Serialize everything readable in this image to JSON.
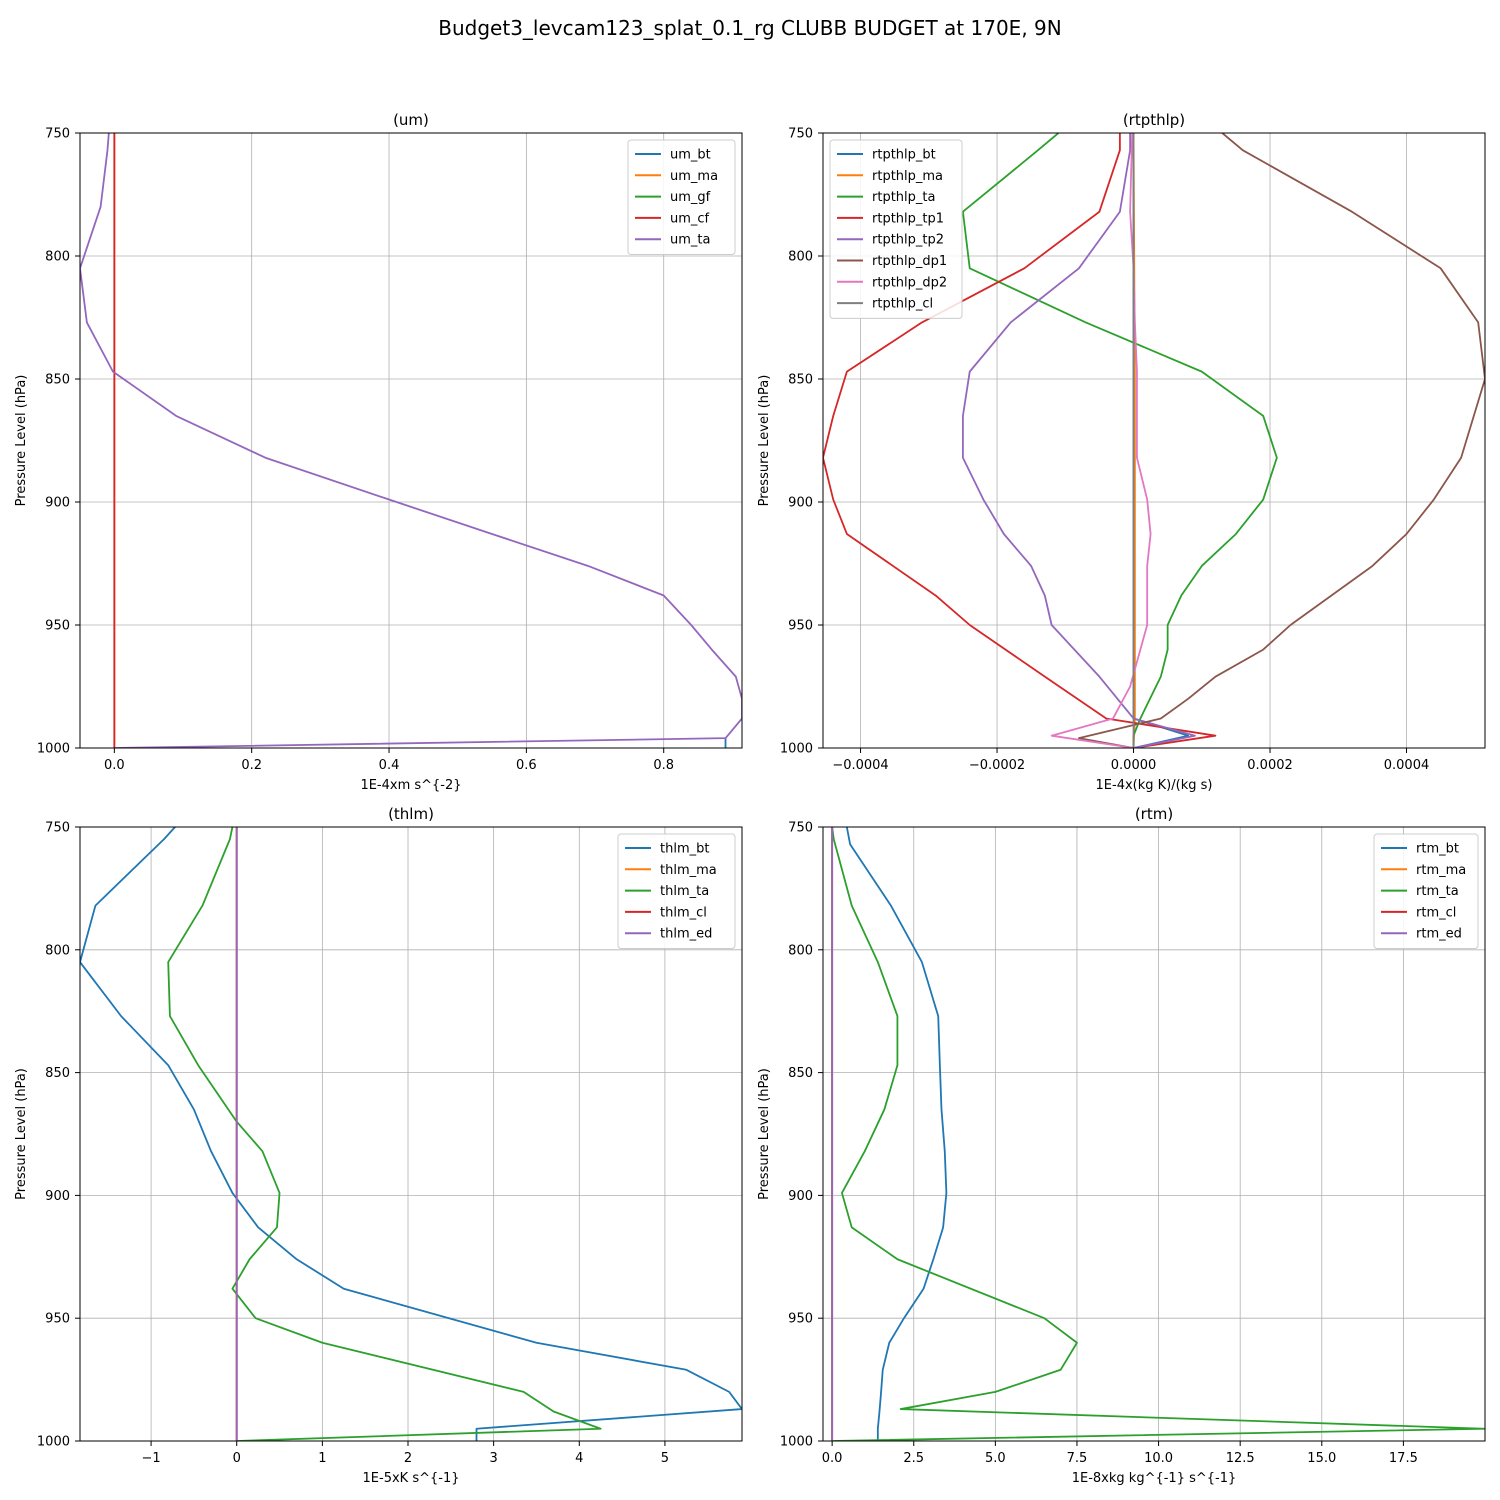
{
  "figure": {
    "title": "Budget3_levcam123_splat_0.1_rg CLUBB BUDGET at 170E, 9N"
  },
  "chart_data": [
    {
      "type": "line",
      "title": "(um)",
      "xlabel": "1E-4xm s^{-2}",
      "ylabel": "Pressure Level (hPa)",
      "xlim": [
        -0.05,
        0.914
      ],
      "ylim": [
        1000,
        750
      ],
      "y_inverted": true,
      "grid": true,
      "legend": "top-right",
      "xticks": [
        0.0,
        0.2,
        0.4,
        0.6,
        0.8
      ],
      "xtick_labels": [
        "0.0",
        "0.2",
        "0.4",
        "0.6",
        "0.8"
      ],
      "yticks": [
        750,
        800,
        850,
        900,
        950,
        1000
      ],
      "ytick_labels": [
        "750",
        "800",
        "850",
        "900",
        "950",
        "1000"
      ],
      "series": [
        {
          "name": "um_bt",
          "color": "#1f77b4",
          "points": [
            [
              0.89,
              1000
            ],
            [
              0.89,
              996
            ]
          ]
        },
        {
          "name": "um_ma",
          "color": "#ff7f0e",
          "points": [
            [
              0,
              1000
            ],
            [
              0,
              750
            ]
          ]
        },
        {
          "name": "um_gf",
          "color": "#2ca02c",
          "points": []
        },
        {
          "name": "um_cf",
          "color": "#d62728",
          "points": [
            [
              0,
              1000
            ],
            [
              0,
              750
            ]
          ]
        },
        {
          "name": "um_ta",
          "color": "#9467bd",
          "points": [
            [
              0,
              1000
            ],
            [
              0.89,
              996
            ],
            [
              0.914,
              988
            ],
            [
              0.914,
              980
            ],
            [
              0.905,
              971
            ],
            [
              0.87,
              960
            ],
            [
              0.84,
              950
            ],
            [
              0.8,
              938
            ],
            [
              0.69,
              926
            ],
            [
              0.55,
              913
            ],
            [
              0.4,
              899
            ],
            [
              0.22,
              882
            ],
            [
              0.09,
              865
            ],
            [
              -0.002,
              847
            ],
            [
              -0.04,
              827
            ],
            [
              -0.05,
              805
            ],
            [
              -0.02,
              780
            ],
            [
              -0.01,
              757
            ],
            [
              -0.008,
              750
            ]
          ]
        }
      ]
    },
    {
      "type": "line",
      "title": "(rtpthlp)",
      "xlabel": "1E-4x(kg K)/(kg s)",
      "ylabel": "Pressure Level (hPa)",
      "xlim": [
        -0.000455,
        0.000515
      ],
      "ylim": [
        1000,
        750
      ],
      "y_inverted": true,
      "grid": true,
      "legend": "top-left",
      "xticks": [
        -0.0004,
        -0.0002,
        0.0,
        0.0002,
        0.0004
      ],
      "xtick_labels": [
        "−0.0004",
        "−0.0002",
        "0.0000",
        "0.0002",
        "0.0004"
      ],
      "yticks": [
        750,
        800,
        850,
        900,
        950,
        1000
      ],
      "ytick_labels": [
        "750",
        "800",
        "850",
        "900",
        "950",
        "1000"
      ],
      "series": [
        {
          "name": "rtpthlp_bt",
          "color": "#1f77b4",
          "points": [
            [
              0,
              1000
            ],
            [
              8e-05,
              995
            ],
            [
              0,
              988
            ],
            [
              0,
              750
            ]
          ]
        },
        {
          "name": "rtpthlp_ma",
          "color": "#ff7f0e",
          "points": [
            [
              0,
              1000
            ],
            [
              2e-06,
              988
            ],
            [
              2e-06,
              950
            ],
            [
              2e-06,
              900
            ],
            [
              2e-06,
              850
            ],
            [
              1e-06,
              800
            ],
            [
              0,
              750
            ]
          ]
        },
        {
          "name": "rtpthlp_ta",
          "color": "#2ca02c",
          "points": [
            [
              0,
              1000
            ],
            [
              0,
              995
            ],
            [
              1e-05,
              988
            ],
            [
              4e-05,
              971
            ],
            [
              5e-05,
              960
            ],
            [
              5e-05,
              950
            ],
            [
              7e-05,
              938
            ],
            [
              0.0001,
              926
            ],
            [
              0.00015,
              913
            ],
            [
              0.00019,
              899
            ],
            [
              0.00021,
              882
            ],
            [
              0.00019,
              865
            ],
            [
              0.0001,
              847
            ],
            [
              -7e-05,
              827
            ],
            [
              -0.00024,
              805
            ],
            [
              -0.00025,
              782
            ],
            [
              -0.00014,
              757
            ],
            [
              -0.00011,
              750
            ]
          ]
        },
        {
          "name": "rtpthlp_tp1",
          "color": "#d62728",
          "points": [
            [
              0,
              1000
            ],
            [
              0.00012,
              995
            ],
            [
              -4e-05,
              988
            ],
            [
              -0.00013,
              971
            ],
            [
              -0.00024,
              950
            ],
            [
              -0.00029,
              938
            ],
            [
              -0.00042,
              913
            ],
            [
              -0.00044,
              899
            ],
            [
              -0.000455,
              882
            ],
            [
              -0.00044,
              865
            ],
            [
              -0.00042,
              847
            ],
            [
              -0.00031,
              827
            ],
            [
              -0.00016,
              805
            ],
            [
              -5e-05,
              782
            ],
            [
              -2e-05,
              757
            ],
            [
              -2e-05,
              750
            ]
          ]
        },
        {
          "name": "rtpthlp_tp2",
          "color": "#9467bd",
          "points": [
            [
              0,
              1000
            ],
            [
              9e-05,
              995
            ],
            [
              0,
              988
            ],
            [
              -5e-05,
              971
            ],
            [
              -0.00012,
              950
            ],
            [
              -0.00013,
              938
            ],
            [
              -0.00015,
              926
            ],
            [
              -0.00019,
              913
            ],
            [
              -0.00022,
              899
            ],
            [
              -0.00025,
              882
            ],
            [
              -0.00025,
              865
            ],
            [
              -0.00024,
              847
            ],
            [
              -0.00018,
              827
            ],
            [
              -8e-05,
              805
            ],
            [
              -2e-05,
              782
            ],
            [
              -5e-06,
              757
            ],
            [
              -5e-06,
              750
            ]
          ]
        },
        {
          "name": "rtpthlp_dp1",
          "color": "#8c564b",
          "points": [
            [
              0,
              1000
            ],
            [
              -8e-05,
              996
            ],
            [
              4e-05,
              988
            ],
            [
              8e-05,
              980
            ],
            [
              0.00012,
              971
            ],
            [
              0.00019,
              960
            ],
            [
              0.00023,
              950
            ],
            [
              0.00029,
              938
            ],
            [
              0.00035,
              926
            ],
            [
              0.0004,
              913
            ],
            [
              0.00044,
              899
            ],
            [
              0.00048,
              882
            ],
            [
              0.000515,
              850
            ],
            [
              0.000505,
              827
            ],
            [
              0.00045,
              805
            ],
            [
              0.00032,
              782
            ],
            [
              0.00016,
              757
            ],
            [
              0.00013,
              750
            ]
          ]
        },
        {
          "name": "rtpthlp_dp2",
          "color": "#e377c2",
          "points": [
            [
              0,
              1000
            ],
            [
              -0.00012,
              995
            ],
            [
              -3e-05,
              988
            ],
            [
              -5e-06,
              975
            ],
            [
              1e-05,
              960
            ],
            [
              2e-05,
              950
            ],
            [
              2e-05,
              938
            ],
            [
              2e-05,
              926
            ],
            [
              2.5e-05,
              913
            ],
            [
              2e-05,
              899
            ],
            [
              5e-06,
              882
            ],
            [
              5e-06,
              847
            ],
            [
              2e-06,
              827
            ],
            [
              0,
              805
            ],
            [
              -5e-06,
              782
            ],
            [
              -2e-06,
              750
            ]
          ]
        },
        {
          "name": "rtpthlp_cl",
          "color": "#7f7f7f",
          "points": [
            [
              0,
              1000
            ],
            [
              0,
              750
            ]
          ]
        }
      ]
    },
    {
      "type": "line",
      "title": "(thlm)",
      "xlabel": "1E-5xK s^{-1}",
      "ylabel": "Pressure Level (hPa)",
      "xlim": [
        -1.83,
        5.9
      ],
      "ylim": [
        1000,
        750
      ],
      "y_inverted": true,
      "grid": true,
      "legend": "top-right",
      "xticks": [
        -1,
        0,
        1,
        2,
        3,
        4,
        5
      ],
      "xtick_labels": [
        "−1",
        "0",
        "1",
        "2",
        "3",
        "4",
        "5"
      ],
      "yticks": [
        750,
        800,
        850,
        900,
        950,
        1000
      ],
      "ytick_labels": [
        "750",
        "800",
        "850",
        "900",
        "950",
        "1000"
      ],
      "series": [
        {
          "name": "thlm_bt",
          "color": "#1f77b4",
          "points": [
            [
              2.8,
              1000
            ],
            [
              2.8,
              995
            ],
            [
              5.9,
              987
            ],
            [
              5.75,
              980
            ],
            [
              5.25,
              971
            ],
            [
              3.5,
              960
            ],
            [
              1.25,
              938
            ],
            [
              0.7,
              926
            ],
            [
              0.25,
              913
            ],
            [
              -0.05,
              899
            ],
            [
              -0.3,
              882
            ],
            [
              -0.5,
              865
            ],
            [
              -0.8,
              847
            ],
            [
              -1.35,
              827
            ],
            [
              -1.83,
              805
            ],
            [
              -1.65,
              782
            ],
            [
              -0.85,
              755
            ],
            [
              -0.72,
              750
            ]
          ]
        },
        {
          "name": "thlm_ma",
          "color": "#ff7f0e",
          "points": [
            [
              0,
              1000
            ],
            [
              0,
              750
            ]
          ]
        },
        {
          "name": "thlm_ta",
          "color": "#2ca02c",
          "points": [
            [
              0,
              1000
            ],
            [
              4.25,
              995
            ],
            [
              3.7,
              988
            ],
            [
              3.35,
              980
            ],
            [
              1.0,
              960
            ],
            [
              0.22,
              950
            ],
            [
              -0.05,
              938
            ],
            [
              0.15,
              926
            ],
            [
              0.47,
              913
            ],
            [
              0.5,
              899
            ],
            [
              0.3,
              882
            ],
            [
              0.0,
              870
            ],
            [
              -0.45,
              847
            ],
            [
              -0.78,
              827
            ],
            [
              -0.8,
              805
            ],
            [
              -0.4,
              782
            ],
            [
              -0.08,
              755
            ],
            [
              -0.05,
              750
            ]
          ]
        },
        {
          "name": "thlm_cl",
          "color": "#d62728",
          "points": [
            [
              0,
              1000
            ],
            [
              0,
              750
            ]
          ]
        },
        {
          "name": "thlm_ed",
          "color": "#9467bd",
          "points": [
            [
              0,
              1000
            ],
            [
              0,
              750
            ]
          ]
        }
      ]
    },
    {
      "type": "line",
      "title": "(rtm)",
      "xlabel": "1E-8xkg kg^{-1} s^{-1}",
      "ylabel": "Pressure Level (hPa)",
      "xlim": [
        -0.28,
        20.0
      ],
      "ylim": [
        1000,
        750
      ],
      "y_inverted": true,
      "grid": true,
      "legend": "top-right",
      "xticks": [
        0.0,
        2.5,
        5.0,
        7.5,
        10.0,
        12.5,
        15.0,
        17.5
      ],
      "xtick_labels": [
        "0.0",
        "2.5",
        "5.0",
        "7.5",
        "10.0",
        "12.5",
        "15.0",
        "17.5"
      ],
      "yticks": [
        750,
        800,
        850,
        900,
        950,
        1000
      ],
      "ytick_labels": [
        "750",
        "800",
        "850",
        "900",
        "950",
        "1000"
      ],
      "series": [
        {
          "name": "rtm_bt",
          "color": "#1f77b4",
          "points": [
            [
              1.4,
              1000
            ],
            [
              1.4,
              995
            ],
            [
              1.45,
              988
            ],
            [
              1.5,
              980
            ],
            [
              1.55,
              971
            ],
            [
              1.75,
              960
            ],
            [
              2.2,
              950
            ],
            [
              2.8,
              938
            ],
            [
              3.1,
              926
            ],
            [
              3.4,
              913
            ],
            [
              3.5,
              899
            ],
            [
              3.45,
              882
            ],
            [
              3.35,
              865
            ],
            [
              3.3,
              847
            ],
            [
              3.25,
              827
            ],
            [
              2.75,
              805
            ],
            [
              1.8,
              782
            ],
            [
              0.55,
              757
            ],
            [
              0.45,
              750
            ]
          ]
        },
        {
          "name": "rtm_ma",
          "color": "#ff7f0e",
          "points": [
            [
              0,
              1000
            ],
            [
              0,
              750
            ]
          ]
        },
        {
          "name": "rtm_ta",
          "color": "#2ca02c",
          "points": [
            [
              0,
              1000
            ],
            [
              20.0,
              995
            ],
            [
              2.1,
              987
            ],
            [
              5.0,
              980
            ],
            [
              7.0,
              971
            ],
            [
              7.5,
              960
            ],
            [
              6.5,
              950
            ],
            [
              2.0,
              926
            ],
            [
              0.6,
              913
            ],
            [
              0.3,
              899
            ],
            [
              1.0,
              882
            ],
            [
              1.6,
              865
            ],
            [
              2.0,
              847
            ],
            [
              2.0,
              827
            ],
            [
              1.4,
              805
            ],
            [
              0.6,
              782
            ],
            [
              0.05,
              755
            ],
            [
              0.0,
              750
            ]
          ]
        },
        {
          "name": "rtm_cl",
          "color": "#d62728",
          "points": [
            [
              0,
              1000
            ],
            [
              0,
              750
            ]
          ]
        },
        {
          "name": "rtm_ed",
          "color": "#9467bd",
          "points": [
            [
              0,
              1000
            ],
            [
              0,
              750
            ]
          ]
        }
      ]
    }
  ]
}
